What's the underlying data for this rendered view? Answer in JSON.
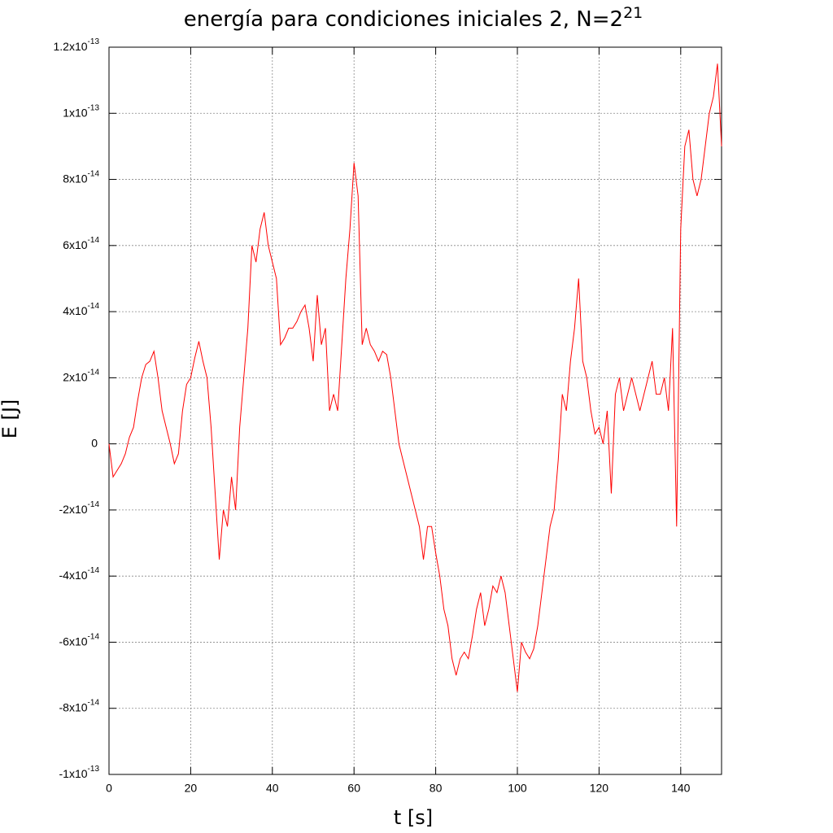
{
  "chart_data": {
    "type": "line",
    "title": "energía para condiciones iniciales 2, N=2",
    "title_superscript": "21",
    "x_label": "t [s]",
    "y_label": "E [J]",
    "x": [
      0,
      1,
      2,
      3,
      4,
      5,
      6,
      7,
      8,
      9,
      10,
      11,
      12,
      13,
      14,
      15,
      16,
      17,
      18,
      19,
      20,
      21,
      22,
      23,
      24,
      25,
      26,
      27,
      28,
      29,
      30,
      31,
      32,
      33,
      34,
      35,
      36,
      37,
      38,
      39,
      40,
      41,
      42,
      43,
      44,
      45,
      46,
      47,
      48,
      49,
      50,
      51,
      52,
      53,
      54,
      55,
      56,
      57,
      58,
      59,
      60,
      61,
      62,
      63,
      64,
      65,
      66,
      67,
      68,
      69,
      70,
      71,
      72,
      73,
      74,
      75,
      76,
      77,
      78,
      79,
      80,
      81,
      82,
      83,
      84,
      85,
      86,
      87,
      88,
      89,
      90,
      91,
      92,
      93,
      94,
      95,
      96,
      97,
      98,
      99,
      100,
      101,
      102,
      103,
      104,
      105,
      106,
      107,
      108,
      109,
      110,
      111,
      112,
      113,
      114,
      115,
      116,
      117,
      118,
      119,
      120,
      121,
      122,
      123,
      124,
      125,
      126,
      127,
      128,
      129,
      130,
      131,
      132,
      133,
      134,
      135,
      136,
      137,
      138,
      139,
      140,
      141,
      142,
      143,
      144,
      145,
      146,
      147,
      148,
      149,
      150
    ],
    "series": [
      {
        "color": "#ff0000",
        "values": [
          0,
          -1e-14,
          -8e-15,
          -6e-15,
          -3e-15,
          2e-15,
          5e-15,
          1.3e-14,
          2e-14,
          2.4e-14,
          2.5e-14,
          2.8e-14,
          2e-14,
          1e-14,
          5e-15,
          0,
          -6e-15,
          -3e-15,
          1e-14,
          1.8e-14,
          2e-14,
          2.6e-14,
          3.1e-14,
          2.5e-14,
          2e-14,
          5e-15,
          -1.5e-14,
          -3.5e-14,
          -2e-14,
          -2.5e-14,
          -1e-14,
          -2e-14,
          5e-15,
          2e-14,
          3.5e-14,
          6e-14,
          5.5e-14,
          6.5e-14,
          7e-14,
          6e-14,
          5.5e-14,
          5e-14,
          3e-14,
          3.2e-14,
          3.5e-14,
          3.5e-14,
          3.7e-14,
          4e-14,
          4.2e-14,
          3.5e-14,
          2.5e-14,
          4.5e-14,
          3e-14,
          3.5e-14,
          1e-14,
          1.5e-14,
          1e-14,
          3e-14,
          5e-14,
          6.5e-14,
          8.5e-14,
          7.5e-14,
          3e-14,
          3.5e-14,
          3e-14,
          2.8e-14,
          2.5e-14,
          2.8e-14,
          2.7e-14,
          2e-14,
          1e-14,
          0,
          -5e-15,
          -1e-14,
          -1.5e-14,
          -2e-14,
          -2.5e-14,
          -3.5e-14,
          -2.5e-14,
          -2.5e-14,
          -3.3e-14,
          -4e-14,
          -5e-14,
          -5.5e-14,
          -6.5e-14,
          -7e-14,
          -6.5e-14,
          -6.3e-14,
          -6.5e-14,
          -5.8e-14,
          -5e-14,
          -4.5e-14,
          -5.5e-14,
          -5e-14,
          -4.3e-14,
          -4.5e-14,
          -4e-14,
          -4.5e-14,
          -5.5e-14,
          -6.5e-14,
          -7.5e-14,
          -6e-14,
          -6.3e-14,
          -6.5e-14,
          -6.2e-14,
          -5.5e-14,
          -4.5e-14,
          -3.5e-14,
          -2.5e-14,
          -2e-14,
          -5e-15,
          1.5e-14,
          1e-14,
          2.5e-14,
          3.5e-14,
          5e-14,
          2.5e-14,
          2e-14,
          1e-14,
          3e-15,
          5e-15,
          0,
          1e-14,
          -1.5e-14,
          1.5e-14,
          2e-14,
          1e-14,
          1.5e-14,
          2e-14,
          1.5e-14,
          1e-14,
          1.5e-14,
          2e-14,
          2.5e-14,
          1.5e-14,
          1.5e-14,
          2e-14,
          1e-14,
          3.5e-14,
          -2.5e-14,
          6.5e-14,
          9e-14,
          9.5e-14,
          8e-14,
          7.5e-14,
          8e-14,
          9e-14,
          1e-13,
          1.05e-13,
          1.15e-13,
          9e-14
        ]
      }
    ],
    "xlim": [
      0,
      150
    ],
    "xticks": [
      0,
      20,
      40,
      60,
      80,
      100,
      120,
      140
    ],
    "ylim": [
      -1e-13,
      1.2e-13
    ],
    "yticks": [
      {
        "value": -1e-13,
        "label": "-1x10",
        "superscript": "-13"
      },
      {
        "value": -8e-14,
        "label": "-8x10",
        "superscript": "-14"
      },
      {
        "value": -6e-14,
        "label": "-6x10",
        "superscript": "-14"
      },
      {
        "value": -4e-14,
        "label": "-4x10",
        "superscript": "-14"
      },
      {
        "value": -2e-14,
        "label": "-2x10",
        "superscript": "-14"
      },
      0,
      {
        "value": 2e-14,
        "label": "2x10",
        "superscript": "-14"
      },
      {
        "value": 4e-14,
        "label": "4x10",
        "superscript": "-14"
      },
      {
        "value": 6e-14,
        "label": "6x10",
        "superscript": "-14"
      },
      {
        "value": 8e-14,
        "label": "8x10",
        "superscript": "-14"
      },
      {
        "value": 1e-13,
        "label": "1x10",
        "superscript": "-13"
      },
      {
        "value": 1.2e-13,
        "label": "1.2x10",
        "superscript": "-13"
      }
    ],
    "grid": true
  }
}
